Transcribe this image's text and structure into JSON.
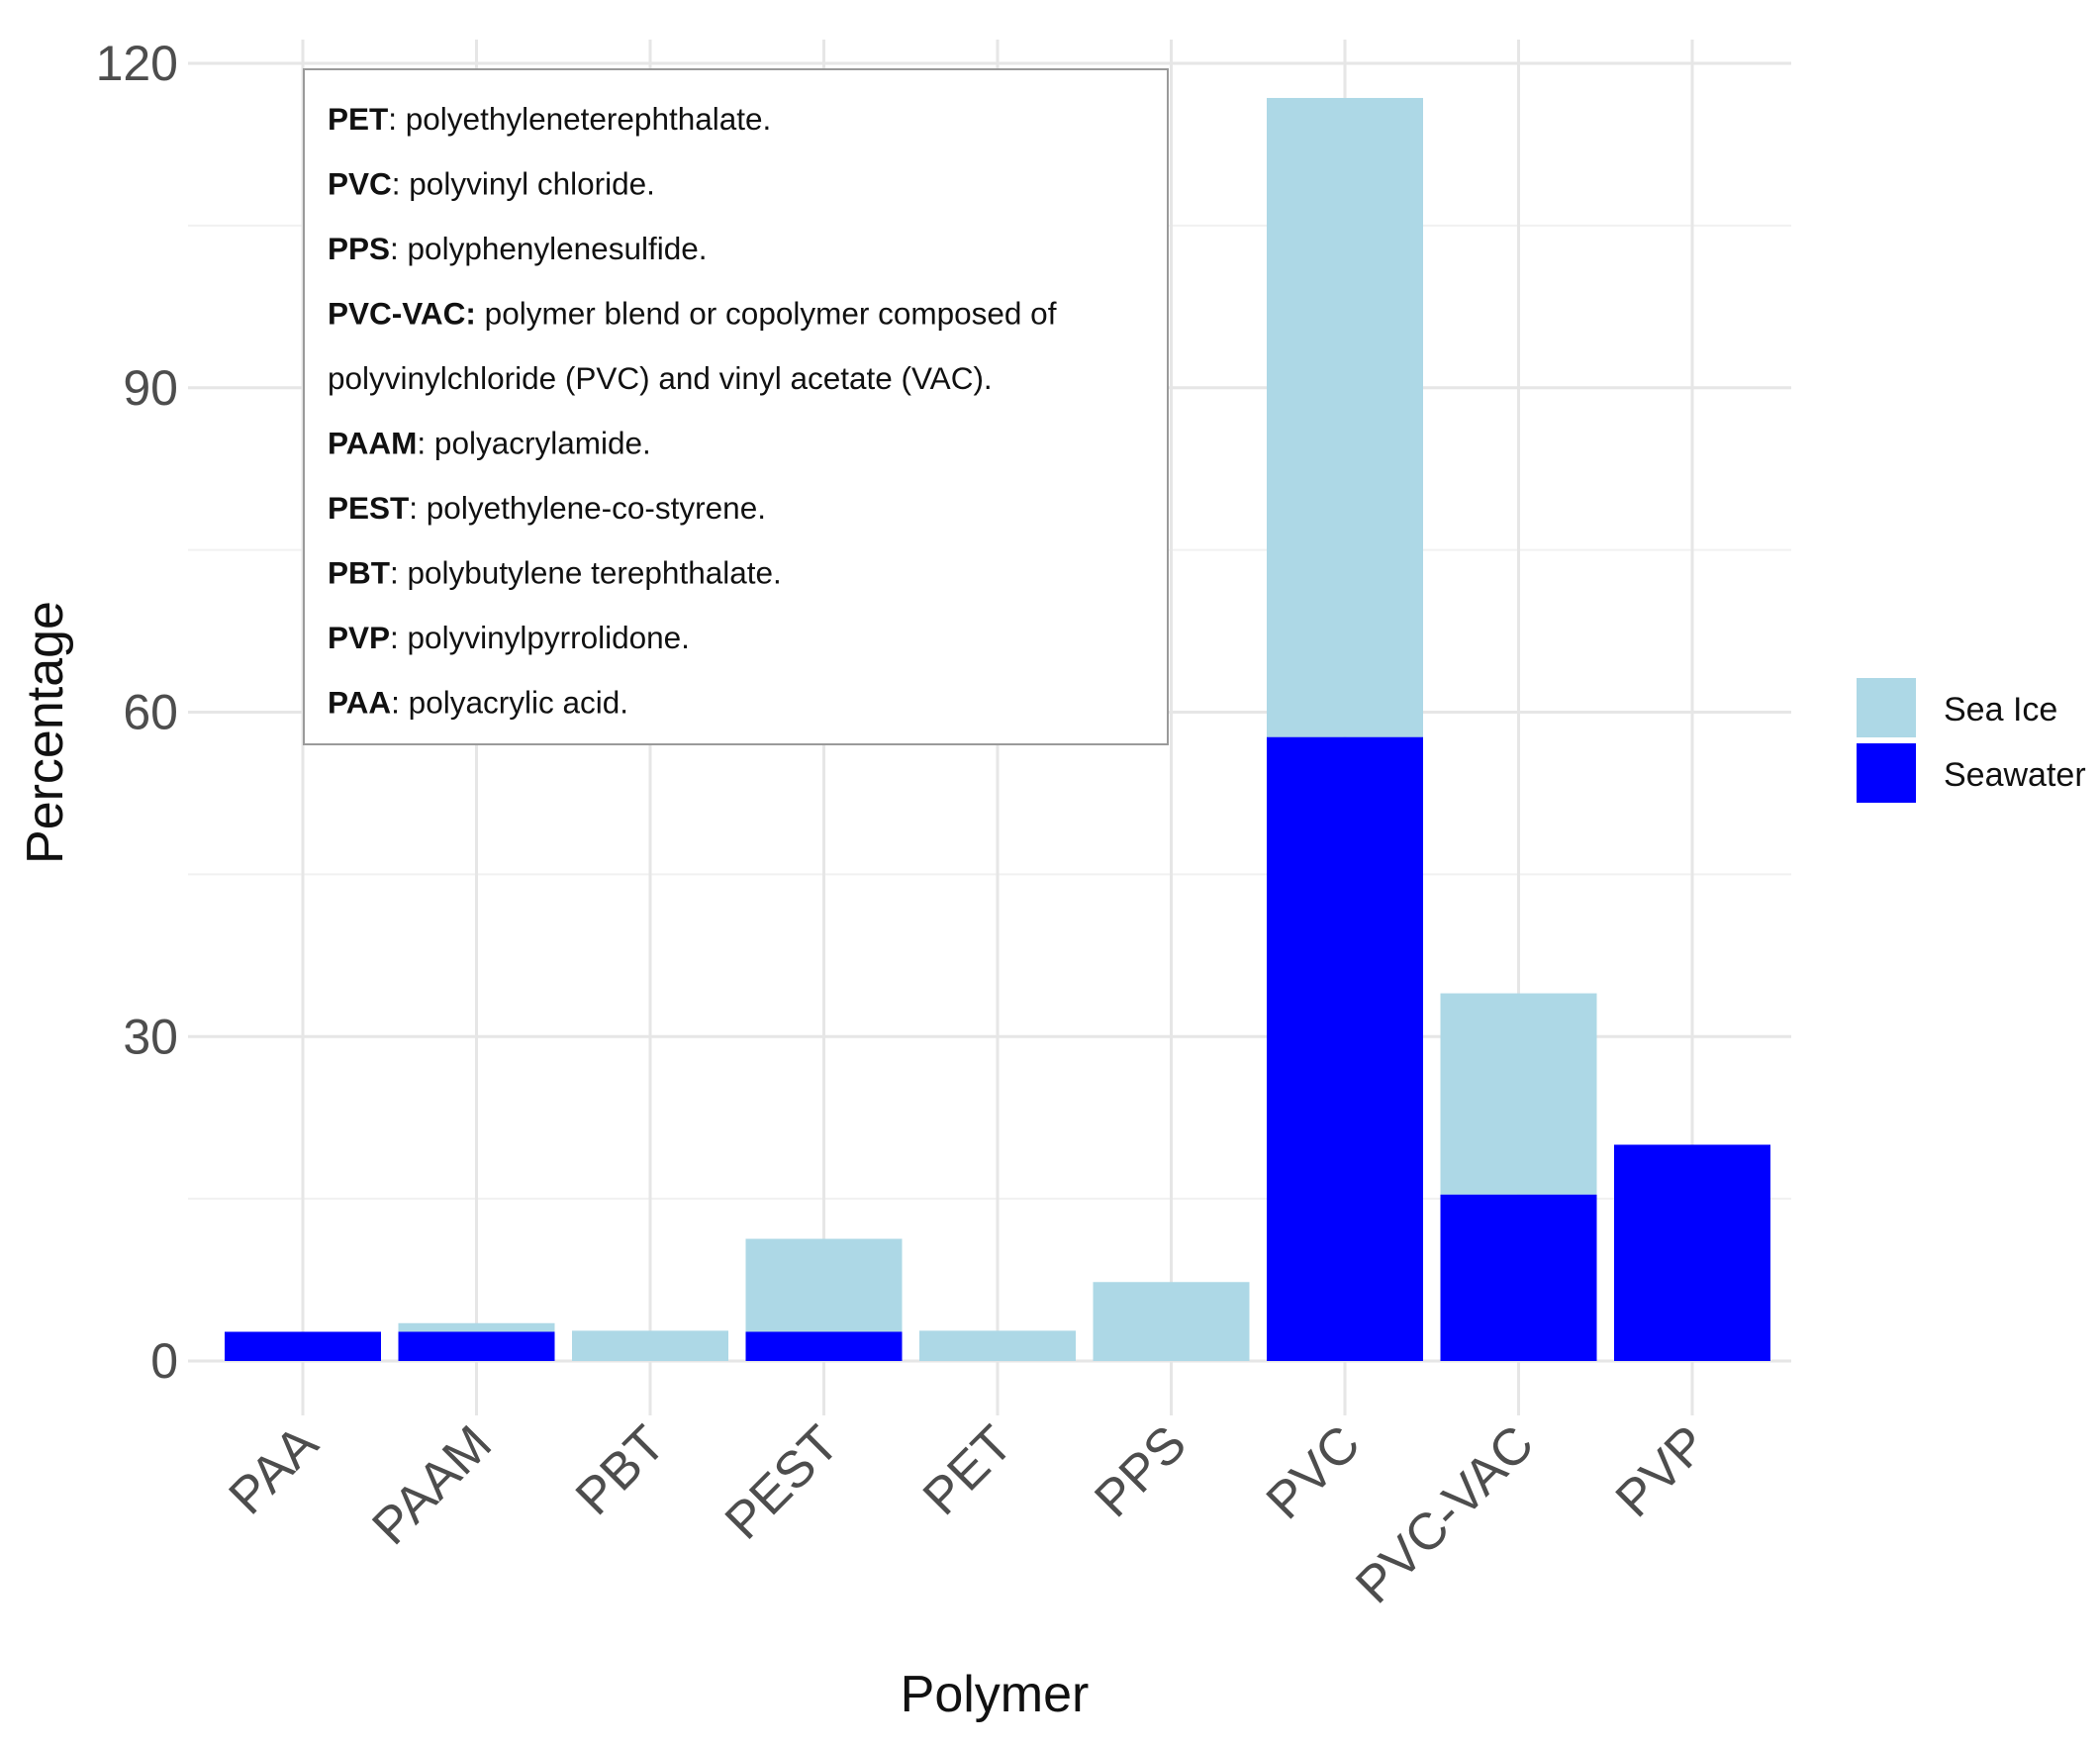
{
  "chart_data": {
    "type": "bar",
    "stacked": true,
    "title": "",
    "xlabel": "Polymer",
    "ylabel": "Percentage",
    "ylim": [
      -2,
      122
    ],
    "yticks": [
      0,
      30,
      60,
      90,
      120
    ],
    "categories": [
      "PAA",
      "PAAM",
      "PBT",
      "PEST",
      "PET",
      "PPS",
      "PVC",
      "PVC-VAC",
      "PVP"
    ],
    "series": [
      {
        "name": "Seawater",
        "color": "#0000FF",
        "values": [
          2.7,
          2.7,
          0,
          2.7,
          0,
          0,
          57.7,
          15.4,
          20
        ]
      },
      {
        "name": "Sea Ice",
        "color": "#ADD8E6",
        "values": [
          0,
          0.8,
          2.8,
          8.6,
          2.8,
          7.3,
          59.1,
          18.6,
          0
        ]
      }
    ],
    "legend": {
      "position": "right",
      "items": [
        {
          "label": "Sea Ice",
          "color": "#ADD8E6"
        },
        {
          "label": "Seawater",
          "color": "#0000FF"
        }
      ]
    },
    "annotation": {
      "lines": [
        [
          {
            "bold": true,
            "text": "PET"
          },
          {
            "bold": false,
            "text": ": polyethyleneterephthalate."
          }
        ],
        [
          {
            "bold": true,
            "text": "PVC"
          },
          {
            "bold": false,
            "text": ": polyvinyl chloride."
          }
        ],
        [
          {
            "bold": true,
            "text": "PPS"
          },
          {
            "bold": false,
            "text": ": polyphenylenesulfide."
          }
        ],
        [
          {
            "bold": true,
            "text": "PVC-VAC:"
          },
          {
            "bold": false,
            "text": " polymer blend or copolymer composed of"
          }
        ],
        [
          {
            "bold": false,
            "text": "polyvinylchloride (PVC) and vinyl acetate (VAC)."
          }
        ],
        [
          {
            "bold": true,
            "text": "PAAM"
          },
          {
            "bold": false,
            "text": ": polyacrylamide."
          }
        ],
        [
          {
            "bold": true,
            "text": "PEST"
          },
          {
            "bold": false,
            "text": ": polyethylene-co-styrene."
          }
        ],
        [
          {
            "bold": true,
            "text": "PBT"
          },
          {
            "bold": false,
            "text": ": polybutylene terephthalate."
          }
        ],
        [
          {
            "bold": true,
            "text": "PVP"
          },
          {
            "bold": false,
            "text": ": polyvinylpyrrolidone."
          }
        ],
        [
          {
            "bold": true,
            "text": "PAA"
          },
          {
            "bold": false,
            "text": ": polyacrylic acid."
          }
        ]
      ]
    }
  }
}
